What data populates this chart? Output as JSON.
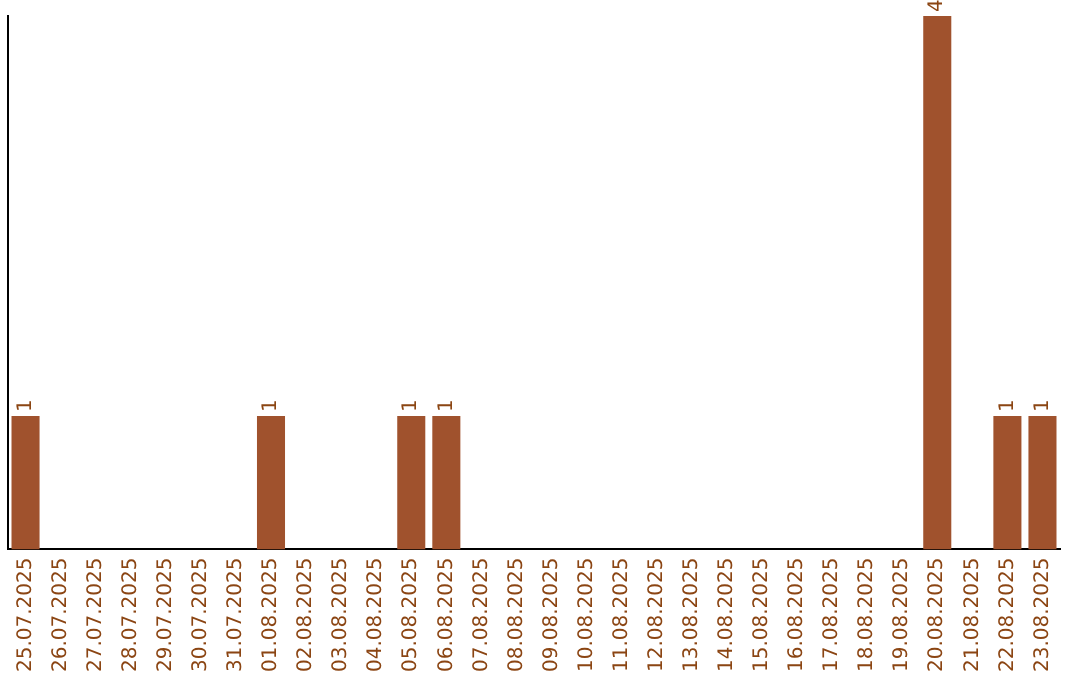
{
  "chart_data": {
    "type": "bar",
    "categories": [
      "25.07.2025",
      "26.07.2025",
      "27.07.2025",
      "28.07.2025",
      "29.07.2025",
      "30.07.2025",
      "31.07.2025",
      "01.08.2025",
      "02.08.2025",
      "03.08.2025",
      "04.08.2025",
      "05.08.2025",
      "06.08.2025",
      "07.08.2025",
      "08.08.2025",
      "09.08.2025",
      "10.08.2025",
      "11.08.2025",
      "12.08.2025",
      "13.08.2025",
      "14.08.2025",
      "15.08.2025",
      "16.08.2025",
      "17.08.2025",
      "18.08.2025",
      "19.08.2025",
      "20.08.2025",
      "21.08.2025",
      "22.08.2025",
      "23.08.2025"
    ],
    "values": [
      1,
      0,
      0,
      0,
      0,
      0,
      0,
      1,
      0,
      0,
      0,
      1,
      1,
      0,
      0,
      0,
      0,
      0,
      0,
      0,
      0,
      0,
      0,
      0,
      0,
      0,
      4,
      0,
      1,
      1
    ],
    "value_labels": [
      "1",
      null,
      null,
      null,
      null,
      null,
      null,
      "1",
      null,
      null,
      null,
      "1",
      "1",
      null,
      null,
      null,
      null,
      null,
      null,
      null,
      null,
      null,
      null,
      null,
      null,
      null,
      "4",
      null,
      "1",
      "1"
    ],
    "color": "#a0522d",
    "grid": false,
    "legend": false,
    "tick_labels": "x"
  }
}
